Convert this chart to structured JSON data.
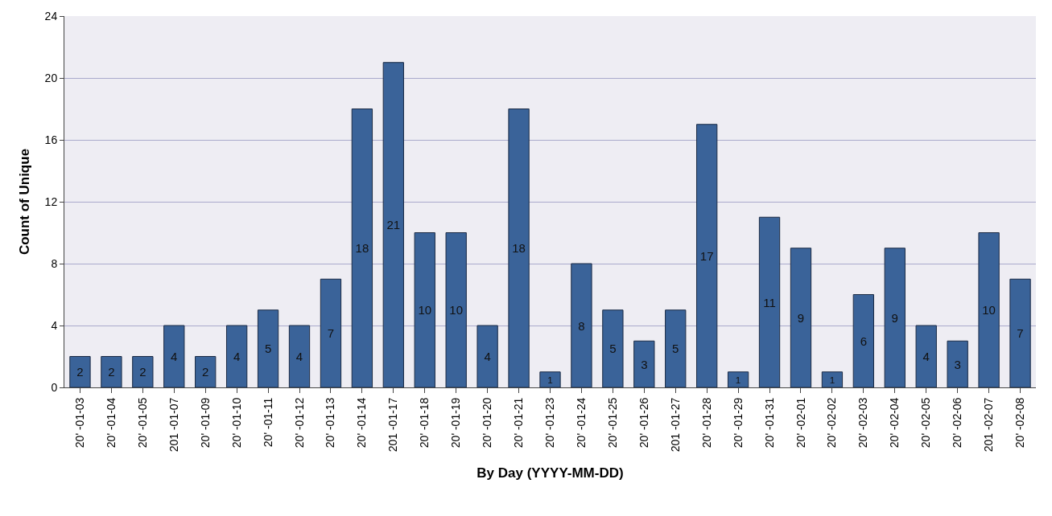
{
  "chart_data": {
    "type": "bar",
    "xlabel": "By Day (YYYY-MM-DD)",
    "ylabel": "Count of Unique",
    "categories": [
      "20' -01-03",
      "20' -01-04",
      "20' -01-05",
      "201 -01-07",
      "20' -01-09",
      "20' -01-10",
      "20' -01-11",
      "20' -01-12",
      "20' -01-13",
      "20' -01-14",
      "201 -01-17",
      "20' -01-18",
      "20' -01-19",
      "20' -01-20",
      "20' -01-21",
      "20' -01-23",
      "20' -01-24",
      "20' -01-25",
      "20' -01-26",
      "201 -01-27",
      "20' -01-28",
      "20' -01-29",
      "20' -01-31",
      "20' -02-01",
      "20' -02-02",
      "20' -02-03",
      "20' -02-04",
      "20' -02-05",
      "20' -02-06",
      "201 -02-07",
      "20' -02-08"
    ],
    "values": [
      2,
      2,
      2,
      4,
      2,
      4,
      5,
      4,
      7,
      18,
      21,
      10,
      10,
      4,
      18,
      1,
      8,
      5,
      3,
      5,
      17,
      1,
      11,
      9,
      1,
      6,
      9,
      4,
      3,
      10,
      7
    ],
    "color": "#3a6399",
    "ylim": [
      0,
      24
    ],
    "yticks": [
      0,
      4,
      8,
      12,
      16,
      20,
      24
    ],
    "grid": "y",
    "data_labels": true,
    "legend": false
  }
}
